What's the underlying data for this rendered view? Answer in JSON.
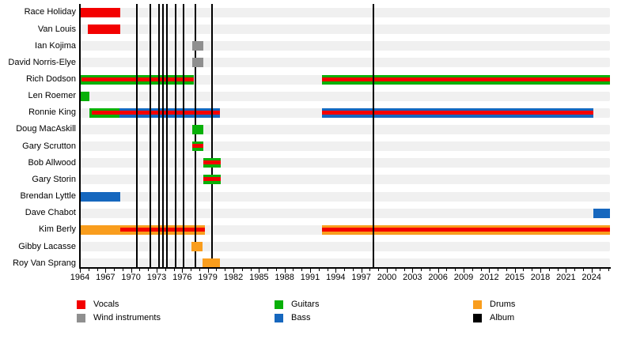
{
  "chart_data": {
    "type": "gantt-timeline",
    "title": "",
    "x_axis": {
      "min": 1964,
      "max": 2026.2,
      "minor_tick_every": 1,
      "major_tick_every": 3,
      "major_tick_labels": [
        "1964",
        "1967",
        "1970",
        "1973",
        "1976",
        "1979",
        "1982",
        "1985",
        "1988",
        "1991",
        "1994",
        "1997",
        "2000",
        "2003",
        "2006",
        "2009",
        "2012",
        "2015",
        "2018",
        "2021",
        "2024"
      ]
    },
    "colors": {
      "vocals": "#f30000",
      "wind": "#8f8f8f",
      "guitars": "#08b008",
      "bass": "#1667be",
      "drums": "#f99d1d",
      "album": "#000000",
      "row_band": "#f0f0f0"
    },
    "legend": [
      {
        "label": "Vocals",
        "key": "vocals"
      },
      {
        "label": "Wind instruments",
        "key": "wind"
      },
      {
        "label": "Guitars",
        "key": "guitars"
      },
      {
        "label": "Bass",
        "key": "bass"
      },
      {
        "label": "Drums",
        "key": "drums"
      },
      {
        "label": "Album",
        "key": "album"
      }
    ],
    "album_years": [
      1970.65,
      1972.3,
      1973.3,
      1973.75,
      1974.25,
      1975.2,
      1976.2,
      1977.55,
      1979.5,
      1998.4
    ],
    "members": [
      {
        "name": "Race Holiday",
        "segments": [
          {
            "instrument": "vocals",
            "start": 1964.05,
            "end": 1968.7
          }
        ]
      },
      {
        "name": "Van Louis",
        "segments": [
          {
            "instrument": "vocals",
            "start": 1964.95,
            "end": 1968.7
          }
        ]
      },
      {
        "name": "Ian Kojima",
        "segments": [
          {
            "instrument": "wind",
            "start": 1977.2,
            "end": 1978.45
          }
        ]
      },
      {
        "name": "David Norris-Elye",
        "segments": [
          {
            "instrument": "wind",
            "start": 1977.2,
            "end": 1978.45
          }
        ]
      },
      {
        "name": "Rich Dodson",
        "segments": [
          {
            "instrument": "guitars",
            "start": 1964.05,
            "end": 1977.35,
            "vocals_start": 1964.2,
            "vocals_end": 1977.35
          },
          {
            "instrument": "guitars",
            "start": 1992.4,
            "end": 2026.15,
            "vocals_start": 1992.4,
            "vocals_end": 2026.15
          }
        ]
      },
      {
        "name": "Len Roemer",
        "segments": [
          {
            "instrument": "guitars",
            "start": 1964.1,
            "end": 1965.1
          }
        ]
      },
      {
        "name": "Ronnie King",
        "segments": [
          {
            "instrument": "guitars",
            "start": 1965.1,
            "end": 1968.6,
            "vocals_start": 1965.4,
            "vocals_end": 1968.6
          },
          {
            "instrument": "bass",
            "start": 1968.6,
            "end": 1980.45,
            "vocals_start": 1968.6,
            "vocals_end": 1980.45
          },
          {
            "instrument": "bass",
            "start": 1992.4,
            "end": 2024.2,
            "vocals_start": 1992.4,
            "vocals_end": 2024.2
          }
        ]
      },
      {
        "name": "Doug MacAskill",
        "segments": [
          {
            "instrument": "guitars",
            "start": 1977.2,
            "end": 1978.45
          }
        ]
      },
      {
        "name": "Gary Scrutton",
        "segments": [
          {
            "instrument": "guitars",
            "start": 1977.2,
            "end": 1978.45,
            "vocals_start": 1977.2,
            "vocals_end": 1978.45
          }
        ]
      },
      {
        "name": "Bob Allwood",
        "segments": [
          {
            "instrument": "guitars",
            "start": 1978.45,
            "end": 1980.55,
            "vocals_start": 1978.45,
            "vocals_end": 1980.55
          }
        ]
      },
      {
        "name": "Gary Storin",
        "segments": [
          {
            "instrument": "guitars",
            "start": 1978.45,
            "end": 1980.55,
            "vocals_start": 1978.45,
            "vocals_end": 1980.55
          }
        ]
      },
      {
        "name": "Brendan Lyttle",
        "segments": [
          {
            "instrument": "bass",
            "start": 1964.05,
            "end": 1968.7
          }
        ]
      },
      {
        "name": "Dave Chabot",
        "segments": [
          {
            "instrument": "bass",
            "start": 2024.2,
            "end": 2026.15
          }
        ]
      },
      {
        "name": "Kim Berly",
        "segments": [
          {
            "instrument": "drums",
            "start": 1964.05,
            "end": 1978.65,
            "vocals_start": 1968.7,
            "vocals_end": 1978.65
          },
          {
            "instrument": "drums",
            "start": 1992.4,
            "end": 2026.15,
            "vocals_start": 1992.4,
            "vocals_end": 2026.15
          }
        ]
      },
      {
        "name": "Gibby Lacasse",
        "segments": [
          {
            "instrument": "drums",
            "start": 1977.05,
            "end": 1978.4
          }
        ]
      },
      {
        "name": "Roy Van Sprang",
        "segments": [
          {
            "instrument": "drums",
            "start": 1978.4,
            "end": 1980.45
          }
        ]
      }
    ]
  }
}
